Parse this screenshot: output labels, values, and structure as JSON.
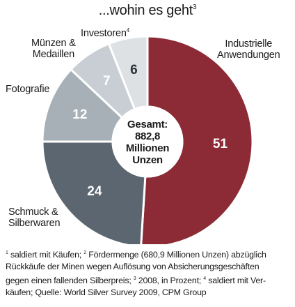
{
  "title": "...wohin es geht",
  "title_footnote_mark": "3",
  "center": {
    "line1": "Gesamt:",
    "line2": "882,8",
    "line3": "Millionen",
    "line4": "Unzen"
  },
  "chart_data": {
    "type": "pie",
    "title": "...wohin es geht",
    "unit": "Prozent",
    "total_label": "Gesamt: 882,8 Millionen Unzen",
    "slices": [
      {
        "label": "Industrielle Anwendungen",
        "value": 51,
        "value_label": "51",
        "color": "#8c2a35",
        "text_color": "#ffffff"
      },
      {
        "label": "Schmuck & Silberwaren",
        "value": 24,
        "value_label": "24",
        "color": "#5b6670",
        "text_color": "#ffffff"
      },
      {
        "label": "Fotografie",
        "value": 12,
        "value_label": "12",
        "color": "#a7b0b7",
        "text_color": "#ffffff"
      },
      {
        "label": "Münzen & Medaillen",
        "value": 7,
        "value_label": "7",
        "color": "#c8ced3",
        "text_color": "#ffffff"
      },
      {
        "label": "Investoren",
        "value": 6,
        "value_label": "6",
        "color": "#dde1e4",
        "text_color": "#2b3138"
      }
    ]
  },
  "labels": {
    "industrie_l1": "Industrielle",
    "industrie_l2": "Anwendungen",
    "investoren": "Investoren",
    "investoren_mark": "4",
    "muenzen_l1": "Münzen &",
    "muenzen_l2": "Medaillen",
    "foto": "Fotografie",
    "schmuck_l1": "Schmuck &",
    "schmuck_l2": "Silberwaren"
  },
  "footnote": {
    "m1": "1",
    "t1": " saldiert mit Käufen; ",
    "m2": "2",
    "t2": " Fördermenge (680,9 Millionen Unzen) abzüglich",
    "line2": "Rückkäufe der Minen wegen Auflösung von Absicherungsgeschäften",
    "t3": "gegen einen fallenden Silberpreis; ",
    "m3": "3",
    "t4": " 2008, in Prozent; ",
    "m4": "4",
    "t5": " saldiert mit Ver-",
    "line4": "käufen; Quelle: World Silver Survey 2009, CPM Group"
  },
  "colors": {
    "ring_border": "#ffffff",
    "center_fill": "#ffffff"
  }
}
